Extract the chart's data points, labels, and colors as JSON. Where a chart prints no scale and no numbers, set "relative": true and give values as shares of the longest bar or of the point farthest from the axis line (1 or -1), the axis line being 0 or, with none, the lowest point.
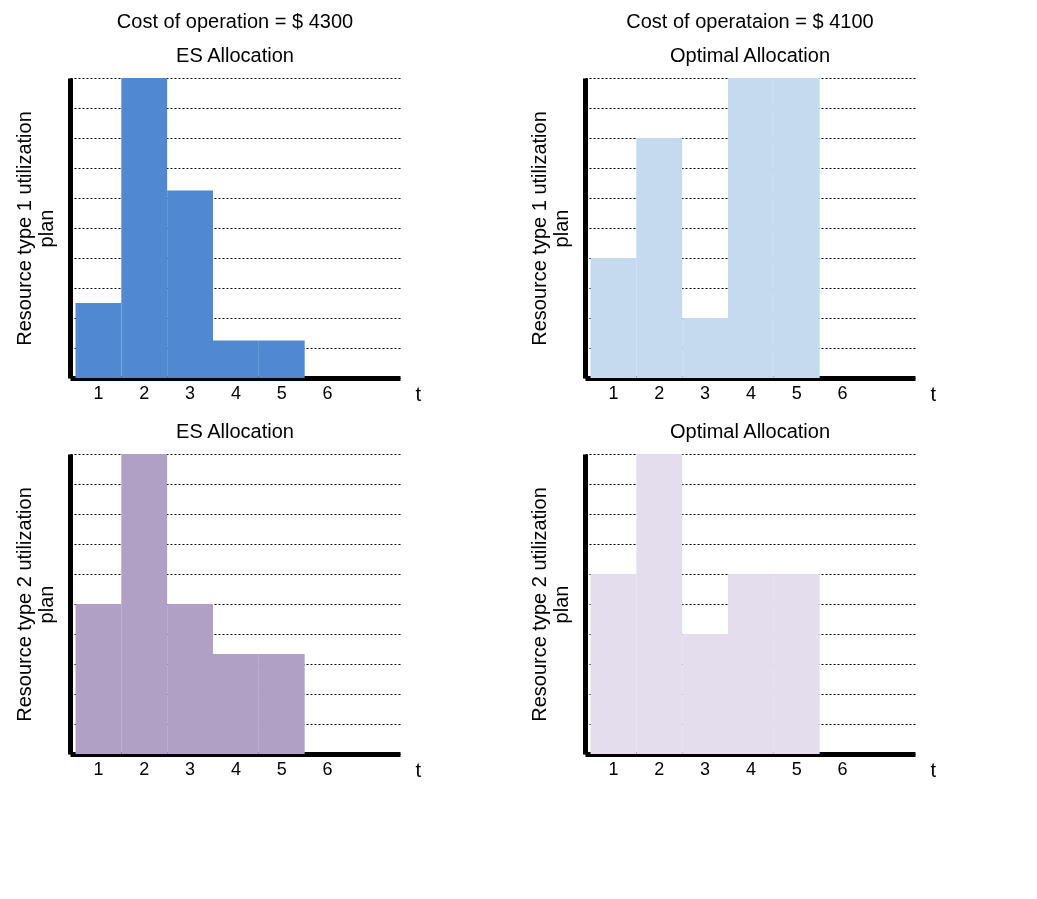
{
  "chart_data": [
    {
      "type": "bar",
      "title": "Cost of operation =  $ 4300",
      "subtitle": "ES Allocation",
      "categories": [
        "1",
        "2",
        "3",
        "4",
        "5",
        "6"
      ],
      "values": [
        0.25,
        1,
        0.625,
        0.125,
        0.125,
        0
      ],
      "color": "#5089d1",
      "relative": true,
      "grid": "y",
      "tick_labels": "x",
      "xlabel": "t",
      "ylabel": "Resource type 1 utilization\nplan"
    },
    {
      "type": "bar",
      "title": "Cost of operataion =  $ 4100",
      "subtitle": "Optimal Allocation",
      "categories": [
        "1",
        "2",
        "3",
        "4",
        "5",
        "6"
      ],
      "values": [
        0.4,
        0.8,
        0.2,
        1,
        1,
        0
      ],
      "color": "#c5d9ef",
      "relative": true,
      "grid": "y",
      "tick_labels": "x",
      "xlabel": "t",
      "ylabel": "Resource type 1 utilization\nplan"
    },
    {
      "type": "bar",
      "title": "ES Allocation",
      "categories": [
        "1",
        "2",
        "3",
        "4",
        "5",
        "6"
      ],
      "values": [
        0.5,
        1,
        0.5,
        0.333,
        0.333,
        0
      ],
      "color": "#b0a0c6",
      "relative": true,
      "grid": "y",
      "tick_labels": "x",
      "xlabel": "t",
      "ylabel": "Resource type 2 utilization\nplan"
    },
    {
      "type": "bar",
      "title": "Optimal Allocation",
      "categories": [
        "1",
        "2",
        "3",
        "4",
        "5",
        "6"
      ],
      "values": [
        0.6,
        1,
        0.4,
        0.6,
        0.6,
        0
      ],
      "color": "#e4dded",
      "relative": true,
      "grid": "y",
      "tick_labels": "x",
      "xlabel": "t",
      "ylabel": "Resource type 2 utilization\nplan"
    }
  ]
}
